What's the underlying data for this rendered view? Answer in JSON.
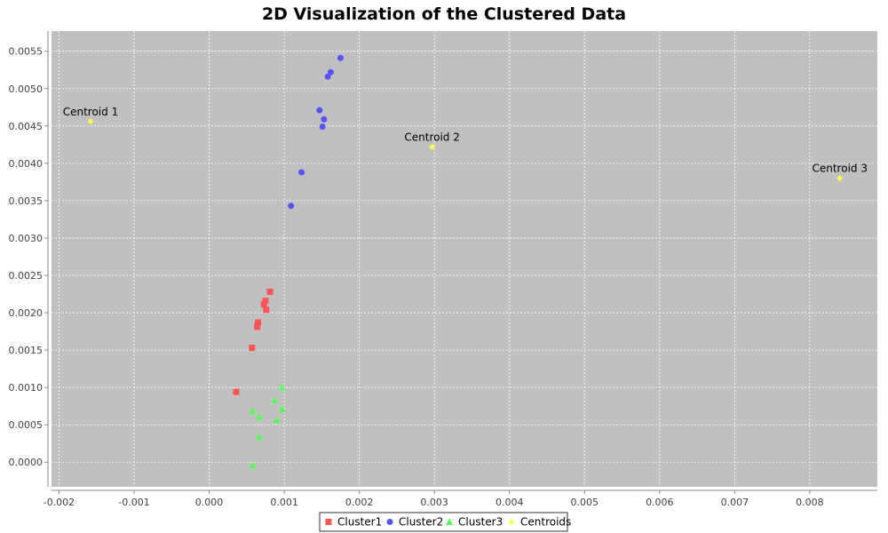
{
  "chart_data": {
    "type": "scatter",
    "title": "2D Visualization of the Clustered Data",
    "xlabel": "",
    "ylabel": "",
    "xlim": [
      -0.0021,
      0.0089
    ],
    "ylim": [
      -0.00033,
      0.00577
    ],
    "x_ticks": [
      -0.002,
      -0.001,
      0.0,
      0.001,
      0.002,
      0.003,
      0.004,
      0.005,
      0.006,
      0.007,
      0.008
    ],
    "x_tick_labels": [
      "-0.002",
      "-0.001",
      "0.000",
      "0.001",
      "0.002",
      "0.003",
      "0.004",
      "0.005",
      "0.006",
      "0.007",
      "0.008"
    ],
    "y_ticks": [
      0.0,
      0.0005,
      0.001,
      0.0015,
      0.002,
      0.0025,
      0.003,
      0.0035,
      0.004,
      0.0045,
      0.005,
      0.0055
    ],
    "y_tick_labels": [
      "0.0000",
      "0.0005",
      "0.0010",
      "0.0015",
      "0.0020",
      "0.0025",
      "0.0030",
      "0.0035",
      "0.0040",
      "0.0045",
      "0.0050",
      "0.0055"
    ],
    "grid": true,
    "plot_background": "#c0c0c0",
    "legend_position": "bottom-center",
    "series": [
      {
        "name": "Cluster1",
        "marker": "square",
        "color": "#ff5555",
        "points": [
          [
            0.00081,
            0.00228
          ],
          [
            0.00075,
            0.00216
          ],
          [
            0.00073,
            0.00211
          ],
          [
            0.00076,
            0.00204
          ],
          [
            0.00065,
            0.00187
          ],
          [
            0.00064,
            0.00181
          ],
          [
            0.00057,
            0.00153
          ],
          [
            0.00036,
            0.00094
          ]
        ]
      },
      {
        "name": "Cluster2",
        "marker": "circle",
        "color": "#5555ff",
        "points": [
          [
            0.00175,
            0.00541
          ],
          [
            0.00162,
            0.00522
          ],
          [
            0.00158,
            0.00516
          ],
          [
            0.00147,
            0.00471
          ],
          [
            0.00153,
            0.00459
          ],
          [
            0.00151,
            0.00449
          ],
          [
            0.00123,
            0.00388
          ],
          [
            0.00109,
            0.00343
          ]
        ]
      },
      {
        "name": "Cluster3",
        "marker": "triangle",
        "color": "#55ff55",
        "points": [
          [
            0.00097,
            0.001
          ],
          [
            0.00087,
            0.00083
          ],
          [
            0.00097,
            0.00071
          ],
          [
            0.00058,
            0.00068
          ],
          [
            0.00067,
            0.00061
          ],
          [
            0.0009,
            0.00056
          ],
          [
            0.00067,
            0.00034
          ],
          [
            0.00058,
            -4e-05
          ]
        ]
      },
      {
        "name": "Centroids",
        "marker": "diamond",
        "color": "#ffff44",
        "points": [
          [
            -0.00158,
            0.00456
          ],
          [
            0.00297,
            0.00422
          ],
          [
            0.0084,
            0.0038
          ]
        ]
      }
    ],
    "annotations": [
      {
        "text": "Centroid 1",
        "x": -0.00158,
        "y": 0.00456
      },
      {
        "text": "Centroid 2",
        "x": 0.00297,
        "y": 0.00422
      },
      {
        "text": "Centroid 3",
        "x": 0.0084,
        "y": 0.0038
      }
    ],
    "legend": [
      "Cluster1",
      "Cluster2",
      "Cluster3",
      "Centroids"
    ]
  }
}
